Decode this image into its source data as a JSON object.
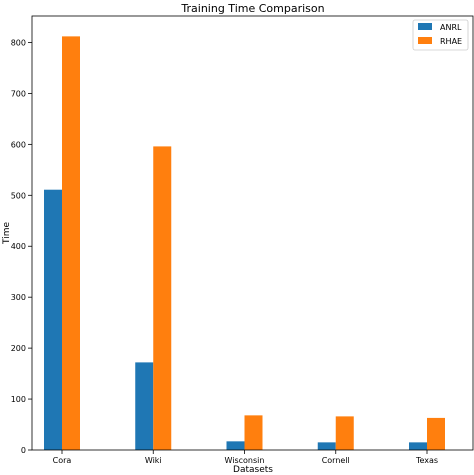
{
  "chart_data": {
    "type": "bar",
    "title": "Training Time Comparison",
    "xlabel": "Datasets",
    "ylabel": "Time",
    "categories": [
      "Cora",
      "Wiki",
      "Wisconsin",
      "Cornell",
      "Texas"
    ],
    "series": [
      {
        "name": "ANRL",
        "color": "#1f77b4",
        "values": [
          511,
          172,
          17,
          15,
          15
        ]
      },
      {
        "name": "RHAE",
        "color": "#ff7f0e",
        "values": [
          812,
          596,
          68,
          66,
          63
        ]
      }
    ],
    "ylim": [
      0,
      852
    ],
    "yticks": [
      0,
      100,
      200,
      300,
      400,
      500,
      600,
      700,
      800
    ],
    "grid": false,
    "legend": "top-right"
  }
}
